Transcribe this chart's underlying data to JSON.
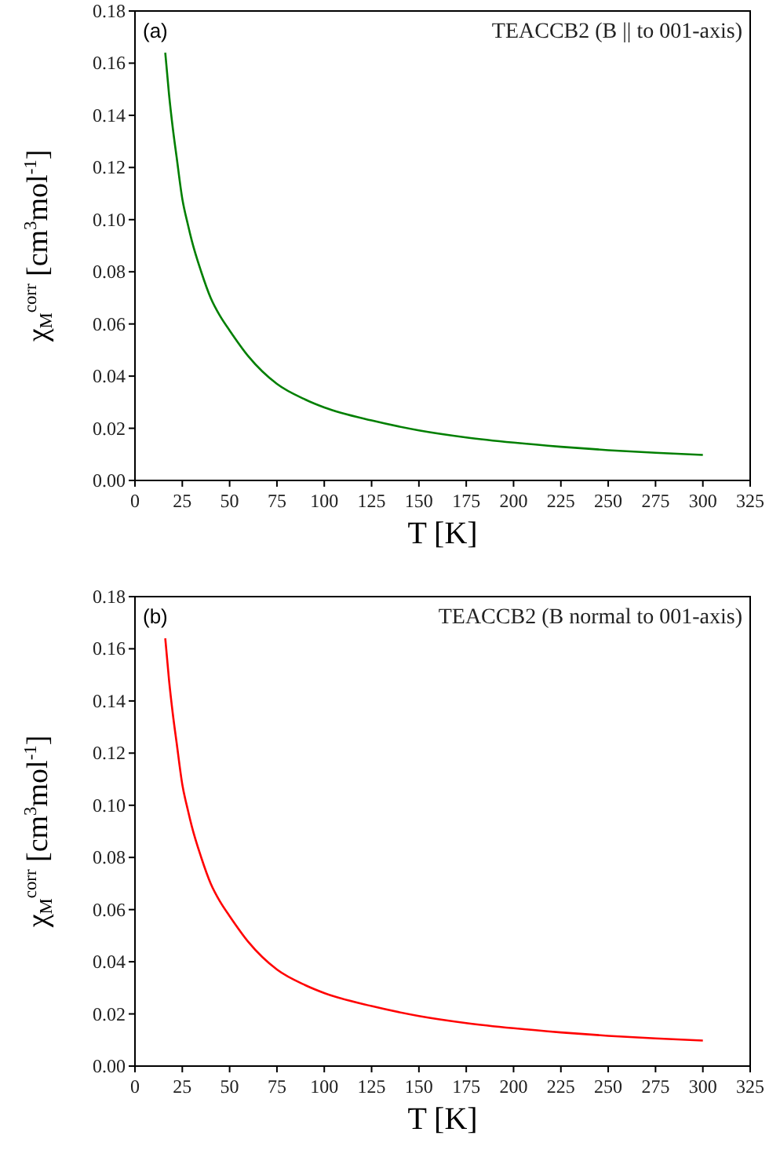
{
  "chart_data": [
    {
      "type": "line",
      "xlabel": "T [K]",
      "ylabel": "χ$_{M}$$^{corr}$ [cm$^{3}$mol$^{-1}$]",
      "annotations": [
        "(a)",
        "TEACCB2 (B || to 001-axis)"
      ],
      "x": [
        16,
        18,
        20,
        22,
        25,
        28,
        30,
        35,
        40,
        45,
        50,
        60,
        75,
        90,
        100,
        125,
        150,
        175,
        200,
        225,
        250,
        275,
        300
      ],
      "series": [
        {
          "color": "#007f00",
          "values": [
            0.164,
            0.148,
            0.135,
            0.124,
            0.108,
            0.098,
            0.092,
            0.08,
            0.07,
            0.063,
            0.0575,
            0.0475,
            0.037,
            0.031,
            0.028,
            0.023,
            0.0192,
            0.0165,
            0.0145,
            0.0129,
            0.0116,
            0.0106,
            0.0098
          ]
        }
      ],
      "xlim": [
        0,
        325
      ],
      "xticks": [
        0,
        25,
        50,
        75,
        100,
        125,
        150,
        175,
        200,
        225,
        250,
        275,
        300,
        325
      ],
      "ylim": [
        0,
        0.18
      ],
      "yticks": [
        {
          "value": 0,
          "label": "0.00"
        },
        {
          "value": 0.02,
          "label": "0.02"
        },
        {
          "value": 0.04,
          "label": "0.04"
        },
        {
          "value": 0.06,
          "label": "0.06"
        },
        {
          "value": 0.08,
          "label": "0.08"
        },
        {
          "value": 0.1,
          "label": "0.10"
        },
        {
          "value": 0.12,
          "label": "0.12"
        },
        {
          "value": 0.14,
          "label": "0.14"
        },
        {
          "value": 0.16,
          "label": "0.16"
        },
        {
          "value": 0.18,
          "label": "0.18"
        }
      ],
      "grid": false
    },
    {
      "type": "line",
      "xlabel": "T [K]",
      "ylabel": "χ$_{M}$$^{corr}$ [cm$^{3}$mol$^{-1}$]",
      "annotations": [
        "(b)",
        "TEACCB2 (B normal to 001-axis)"
      ],
      "x": [
        16,
        18,
        20,
        22,
        25,
        28,
        30,
        35,
        40,
        45,
        50,
        60,
        75,
        90,
        100,
        125,
        150,
        175,
        200,
        225,
        250,
        275,
        300
      ],
      "series": [
        {
          "color": "#ff0000",
          "values": [
            0.164,
            0.148,
            0.135,
            0.124,
            0.108,
            0.098,
            0.092,
            0.08,
            0.07,
            0.063,
            0.0575,
            0.0475,
            0.037,
            0.031,
            0.028,
            0.023,
            0.0192,
            0.0165,
            0.0145,
            0.0129,
            0.0116,
            0.0106,
            0.0098
          ]
        }
      ],
      "xlim": [
        0,
        325
      ],
      "xticks": [
        0,
        25,
        50,
        75,
        100,
        125,
        150,
        175,
        200,
        225,
        250,
        275,
        300,
        325
      ],
      "ylim": [
        0,
        0.18
      ],
      "yticks": [
        {
          "value": 0,
          "label": "0.00"
        },
        {
          "value": 0.02,
          "label": "0.02"
        },
        {
          "value": 0.04,
          "label": "0.04"
        },
        {
          "value": 0.06,
          "label": "0.06"
        },
        {
          "value": 0.08,
          "label": "0.08"
        },
        {
          "value": 0.1,
          "label": "0.10"
        },
        {
          "value": 0.12,
          "label": "0.12"
        },
        {
          "value": 0.14,
          "label": "0.14"
        },
        {
          "value": 0.16,
          "label": "0.16"
        },
        {
          "value": 0.18,
          "label": "0.18"
        }
      ],
      "grid": false
    }
  ]
}
